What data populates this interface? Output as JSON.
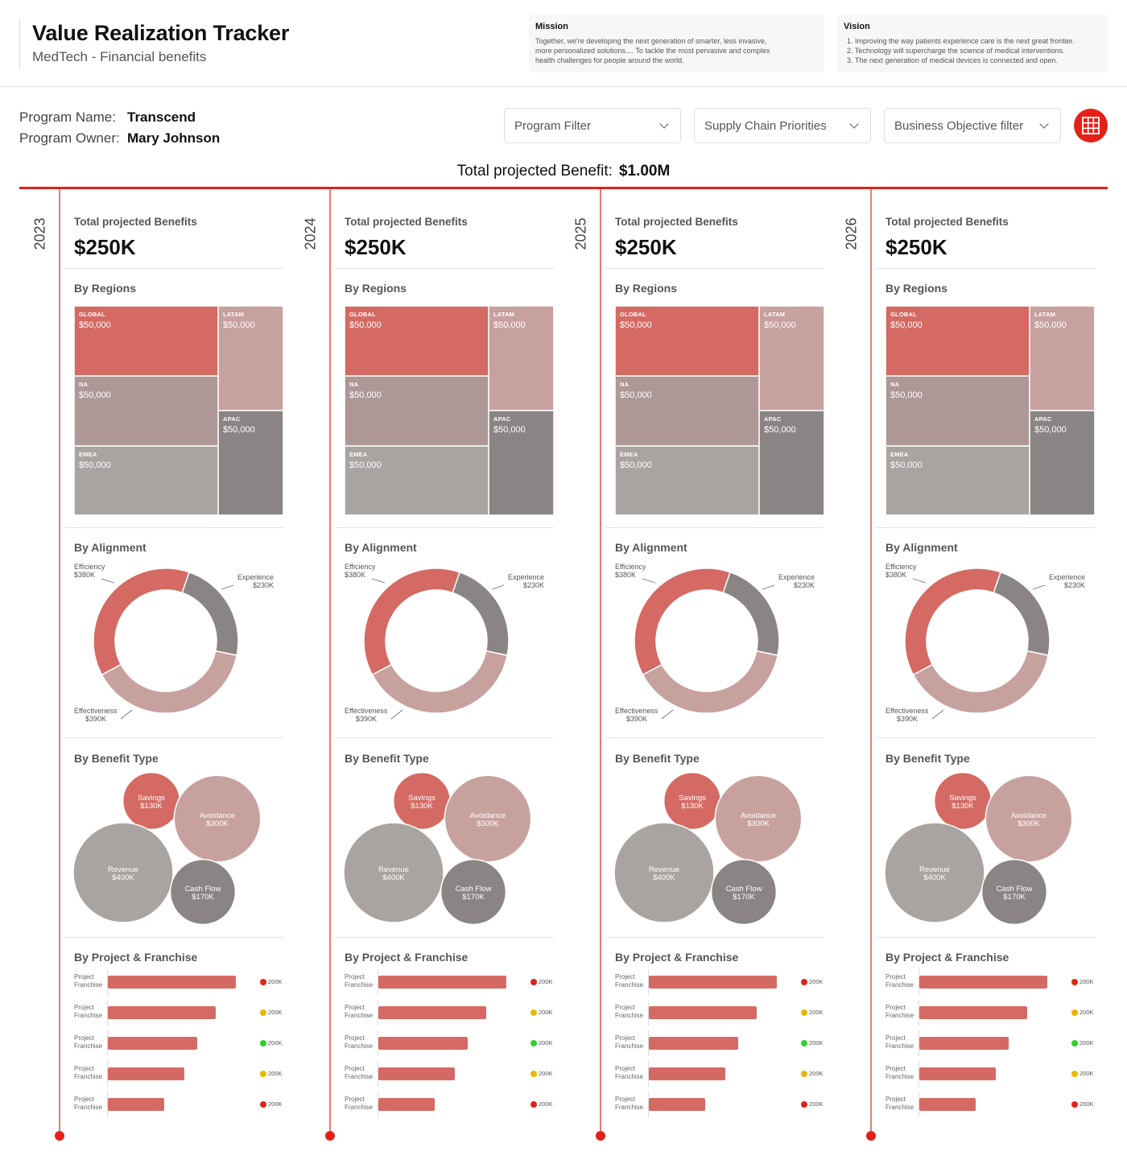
{
  "header": {
    "title": "Value Realization Tracker",
    "subtitle": "MedTech - Financial benefits",
    "mission": {
      "title": "Mission",
      "lines": [
        "Together, we're developing the next generation of smarter, less invasive,",
        "more personalized solutions....  To tackle the most pervasive and complex",
        "health challenges for people around the world."
      ]
    },
    "vision": {
      "title": "Vision",
      "lines": [
        "1. Improving the way patients experience care is the next great frontier.",
        "2. Technology will supercharge the science of medical interventions.",
        "3. The next generation of medical devices is connected and open."
      ]
    }
  },
  "program": {
    "name_label": "Program Name:",
    "name": "Transcend",
    "owner_label": "Program Owner:",
    "owner": "Mary Johnson"
  },
  "filters": [
    {
      "label": "Program Filter"
    },
    {
      "label": "Supply Chain Priorities"
    },
    {
      "label": "Business Objective filter"
    }
  ],
  "grid_button_icon": "grid-icon",
  "total": {
    "label": "Total projected Benefit:",
    "value": "$1.00M"
  },
  "colors": {
    "accent": "#e32119",
    "coral": "#d46a63",
    "rose": "#c7a19e",
    "mauve": "#ad9897",
    "taupe": "#a9a3a1",
    "gray": "#8a8584",
    "status_red": "#e32119",
    "status_yellow": "#e8b800",
    "status_green": "#2fd12f"
  },
  "years": [
    {
      "year": "2023",
      "total_label": "Total projected Benefits",
      "total_value": "$250K",
      "regions_title": "By Regions",
      "regions": [
        {
          "name": "GLOBAL",
          "value": "$50,000"
        },
        {
          "name": "LATAM",
          "value": "$50,000"
        },
        {
          "name": "NA",
          "value": "$50,000"
        },
        {
          "name": "APAC",
          "value": "$50,000"
        },
        {
          "name": "EMEA",
          "value": "$50,000"
        }
      ],
      "alignment_title": "By Alignment",
      "alignment": [
        {
          "name": "Efficiency",
          "value": "$380K",
          "amount": 380
        },
        {
          "name": "Experience",
          "value": "$230K",
          "amount": 230
        },
        {
          "name": "Effectiveness",
          "value": "$390K",
          "amount": 390
        }
      ],
      "benefit_title": "By Benefit Type",
      "benefits": [
        {
          "name": "Savings",
          "value": "$130K",
          "amount": 130
        },
        {
          "name": "Avoidance",
          "value": "$300K",
          "amount": 300
        },
        {
          "name": "Revenue",
          "value": "$400K",
          "amount": 400
        },
        {
          "name": "Cash Flow",
          "value": "$170K",
          "amount": 170
        }
      ],
      "projects_title": "By Project & Franchise",
      "projects": [
        {
          "project": "Project",
          "franchise": "Franchise",
          "value": "200K",
          "level": 1.0,
          "status": "red"
        },
        {
          "project": "Project",
          "franchise": "Franchise",
          "value": "200K",
          "level": 0.84,
          "status": "yellow"
        },
        {
          "project": "Project",
          "franchise": "Franchise",
          "value": "200K",
          "level": 0.7,
          "status": "green"
        },
        {
          "project": "Project",
          "franchise": "Franchise",
          "value": "200K",
          "level": 0.6,
          "status": "yellow"
        },
        {
          "project": "Project",
          "franchise": "Franchise",
          "value": "200K",
          "level": 0.44,
          "status": "red"
        }
      ]
    },
    {
      "year": "2024",
      "total_label": "Total projected Benefits",
      "total_value": "$250K",
      "regions_title": "By Regions",
      "regions": [
        {
          "name": "GLOBAL",
          "value": "$50,000"
        },
        {
          "name": "LATAM",
          "value": "$50,000"
        },
        {
          "name": "NA",
          "value": "$50,000"
        },
        {
          "name": "APAC",
          "value": "$50,000"
        },
        {
          "name": "EMEA",
          "value": "$50,000"
        }
      ],
      "alignment_title": "By Alignment",
      "alignment": [
        {
          "name": "Efficiency",
          "value": "$380K",
          "amount": 380
        },
        {
          "name": "Experience",
          "value": "$230K",
          "amount": 230
        },
        {
          "name": "Effectiveness",
          "value": "$390K",
          "amount": 390
        }
      ],
      "benefit_title": "By Benefit Type",
      "benefits": [
        {
          "name": "Savings",
          "value": "$130K",
          "amount": 130
        },
        {
          "name": "Avoidance",
          "value": "$300K",
          "amount": 300
        },
        {
          "name": "Revenue",
          "value": "$400K",
          "amount": 400
        },
        {
          "name": "Cash Flow",
          "value": "$170K",
          "amount": 170
        }
      ],
      "projects_title": "By Project & Franchise",
      "projects": [
        {
          "project": "Project",
          "franchise": "Franchise",
          "value": "200K",
          "level": 1.0,
          "status": "red"
        },
        {
          "project": "Project",
          "franchise": "Franchise",
          "value": "200K",
          "level": 0.84,
          "status": "yellow"
        },
        {
          "project": "Project",
          "franchise": "Franchise",
          "value": "200K",
          "level": 0.7,
          "status": "green"
        },
        {
          "project": "Project",
          "franchise": "Franchise",
          "value": "200K",
          "level": 0.6,
          "status": "yellow"
        },
        {
          "project": "Project",
          "franchise": "Franchise",
          "value": "200K",
          "level": 0.44,
          "status": "red"
        }
      ]
    },
    {
      "year": "2025",
      "total_label": "Total projected Benefits",
      "total_value": "$250K",
      "regions_title": "By Regions",
      "regions": [
        {
          "name": "GLOBAL",
          "value": "$50,000"
        },
        {
          "name": "LATAM",
          "value": "$50,000"
        },
        {
          "name": "NA",
          "value": "$50,000"
        },
        {
          "name": "APAC",
          "value": "$50,000"
        },
        {
          "name": "EMEA",
          "value": "$50,000"
        }
      ],
      "alignment_title": "By Alignment",
      "alignment": [
        {
          "name": "Efficiency",
          "value": "$380K",
          "amount": 380
        },
        {
          "name": "Experience",
          "value": "$230K",
          "amount": 230
        },
        {
          "name": "Effectiveness",
          "value": "$390K",
          "amount": 390
        }
      ],
      "benefit_title": "By Benefit Type",
      "benefits": [
        {
          "name": "Savings",
          "value": "$130K",
          "amount": 130
        },
        {
          "name": "Avoidance",
          "value": "$300K",
          "amount": 300
        },
        {
          "name": "Revenue",
          "value": "$400K",
          "amount": 400
        },
        {
          "name": "Cash Flow",
          "value": "$170K",
          "amount": 170
        }
      ],
      "projects_title": "By Project & Franchise",
      "projects": [
        {
          "project": "Project",
          "franchise": "Franchise",
          "value": "200K",
          "level": 1.0,
          "status": "red"
        },
        {
          "project": "Project",
          "franchise": "Franchise",
          "value": "200K",
          "level": 0.84,
          "status": "yellow"
        },
        {
          "project": "Project",
          "franchise": "Franchise",
          "value": "200K",
          "level": 0.7,
          "status": "green"
        },
        {
          "project": "Project",
          "franchise": "Franchise",
          "value": "200K",
          "level": 0.6,
          "status": "yellow"
        },
        {
          "project": "Project",
          "franchise": "Franchise",
          "value": "200K",
          "level": 0.44,
          "status": "red"
        }
      ]
    },
    {
      "year": "2026",
      "total_label": "Total projected Benefits",
      "total_value": "$250K",
      "regions_title": "By Regions",
      "regions": [
        {
          "name": "GLOBAL",
          "value": "$50,000"
        },
        {
          "name": "LATAM",
          "value": "$50,000"
        },
        {
          "name": "NA",
          "value": "$50,000"
        },
        {
          "name": "APAC",
          "value": "$50,000"
        },
        {
          "name": "EMEA",
          "value": "$50,000"
        }
      ],
      "alignment_title": "By Alignment",
      "alignment": [
        {
          "name": "Efficiency",
          "value": "$380K",
          "amount": 380
        },
        {
          "name": "Experience",
          "value": "$230K",
          "amount": 230
        },
        {
          "name": "Effectiveness",
          "value": "$390K",
          "amount": 390
        }
      ],
      "benefit_title": "By Benefit Type",
      "benefits": [
        {
          "name": "Savings",
          "value": "$130K",
          "amount": 130
        },
        {
          "name": "Avoidance",
          "value": "$300K",
          "amount": 300
        },
        {
          "name": "Revenue",
          "value": "$400K",
          "amount": 400
        },
        {
          "name": "Cash Flow",
          "value": "$170K",
          "amount": 170
        }
      ],
      "projects_title": "By Project & Franchise",
      "projects": [
        {
          "project": "Project",
          "franchise": "Franchise",
          "value": "200K",
          "level": 1.0,
          "status": "red"
        },
        {
          "project": "Project",
          "franchise": "Franchise",
          "value": "200K",
          "level": 0.84,
          "status": "yellow"
        },
        {
          "project": "Project",
          "franchise": "Franchise",
          "value": "200K",
          "level": 0.7,
          "status": "green"
        },
        {
          "project": "Project",
          "franchise": "Franchise",
          "value": "200K",
          "level": 0.6,
          "status": "yellow"
        },
        {
          "project": "Project",
          "franchise": "Franchise",
          "value": "200K",
          "level": 0.44,
          "status": "red"
        }
      ]
    }
  ]
}
